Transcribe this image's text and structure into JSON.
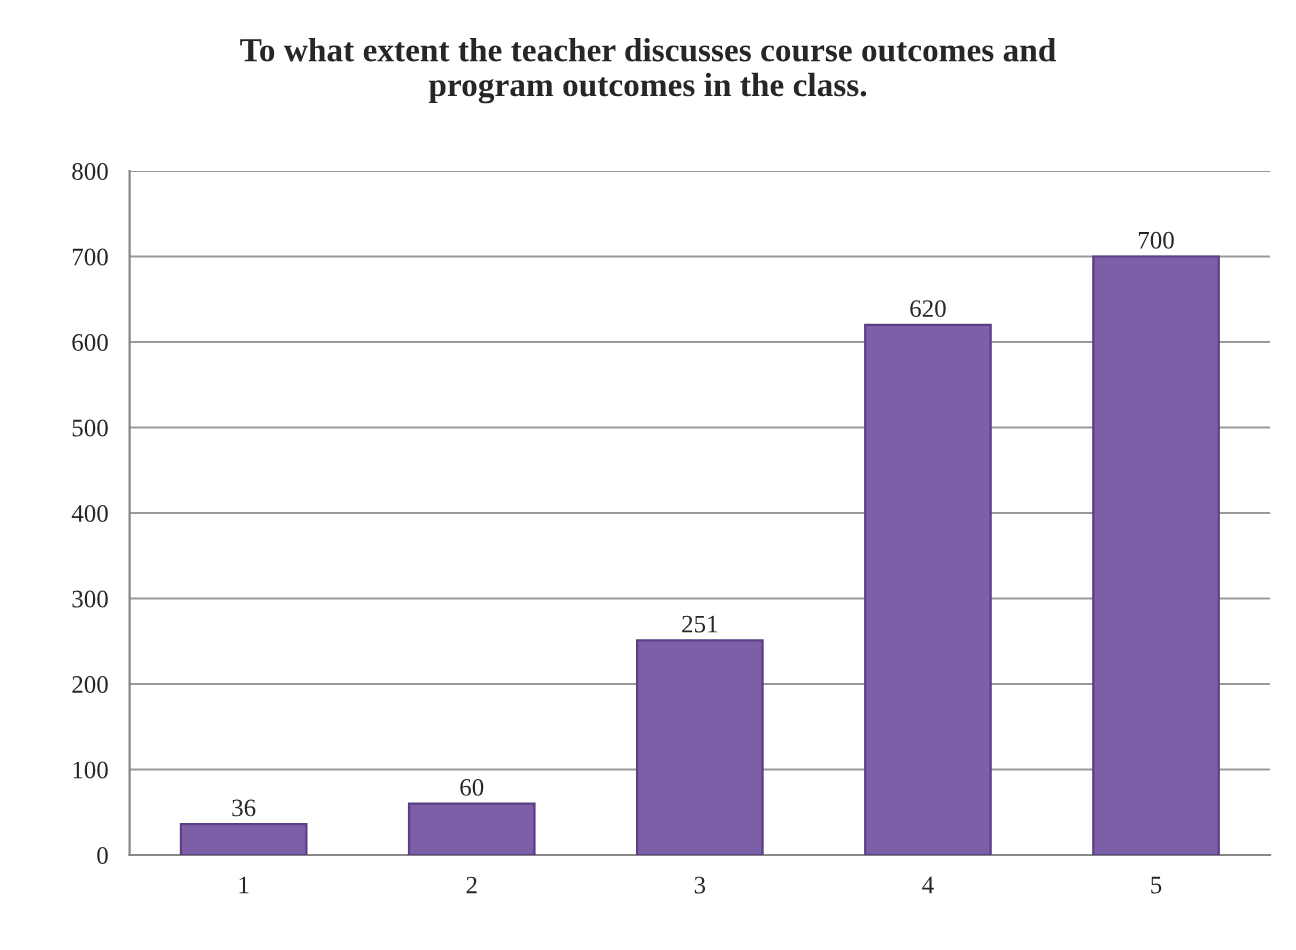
{
  "chart_data": {
    "type": "bar",
    "title": "To what extent the teacher discusses course outcomes and\nprogram outcomes in the class.",
    "categories": [
      "1",
      "2",
      "3",
      "4",
      "5"
    ],
    "values": [
      36,
      60,
      251,
      620,
      700
    ],
    "color": "#7d5fa8",
    "data_labels": true,
    "ylim": [
      0,
      800
    ],
    "yticks": [
      0,
      100,
      200,
      300,
      400,
      500,
      600,
      700,
      800
    ],
    "grid": "y"
  }
}
